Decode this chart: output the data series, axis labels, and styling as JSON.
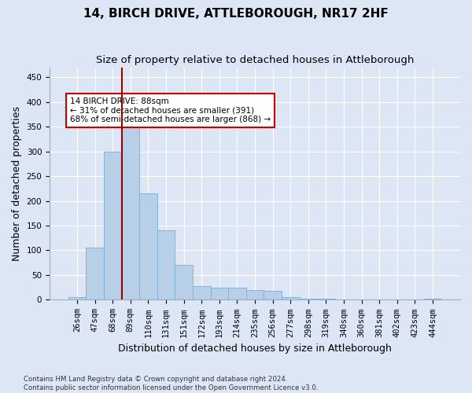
{
  "title_line1": "14, BIRCH DRIVE, ATTLEBOROUGH, NR17 2HF",
  "title_line2": "Size of property relative to detached houses in Attleborough",
  "xlabel": "Distribution of detached houses by size in Attleborough",
  "ylabel": "Number of detached properties",
  "footnote": "Contains HM Land Registry data © Crown copyright and database right 2024.\nContains public sector information licensed under the Open Government Licence v3.0.",
  "bar_labels": [
    "26sqm",
    "47sqm",
    "68sqm",
    "89sqm",
    "110sqm",
    "131sqm",
    "151sqm",
    "172sqm",
    "193sqm",
    "214sqm",
    "235sqm",
    "256sqm",
    "277sqm",
    "298sqm",
    "319sqm",
    "340sqm",
    "360sqm",
    "381sqm",
    "402sqm",
    "423sqm",
    "444sqm"
  ],
  "bar_values": [
    5,
    105,
    300,
    365,
    215,
    140,
    70,
    27,
    25,
    25,
    20,
    18,
    5,
    2,
    2,
    0,
    0,
    0,
    0,
    0,
    2
  ],
  "bar_color": "#b8cfe8",
  "bar_edge_color": "#7aadd4",
  "vline_index": 2.5,
  "vline_color": "#990000",
  "annotation_text": "14 BIRCH DRIVE: 88sqm\n← 31% of detached houses are smaller (391)\n68% of semi-detached houses are larger (868) →",
  "annotation_box_color": "#ffffff",
  "annotation_box_edge": "#cc0000",
  "ylim": [
    0,
    470
  ],
  "yticks": [
    0,
    50,
    100,
    150,
    200,
    250,
    300,
    350,
    400,
    450
  ],
  "bg_color": "#dce6f5",
  "plot_bg_color": "#dce6f5",
  "title_fontsize": 11,
  "subtitle_fontsize": 9.5,
  "axis_label_fontsize": 9,
  "tick_fontsize": 7.5
}
